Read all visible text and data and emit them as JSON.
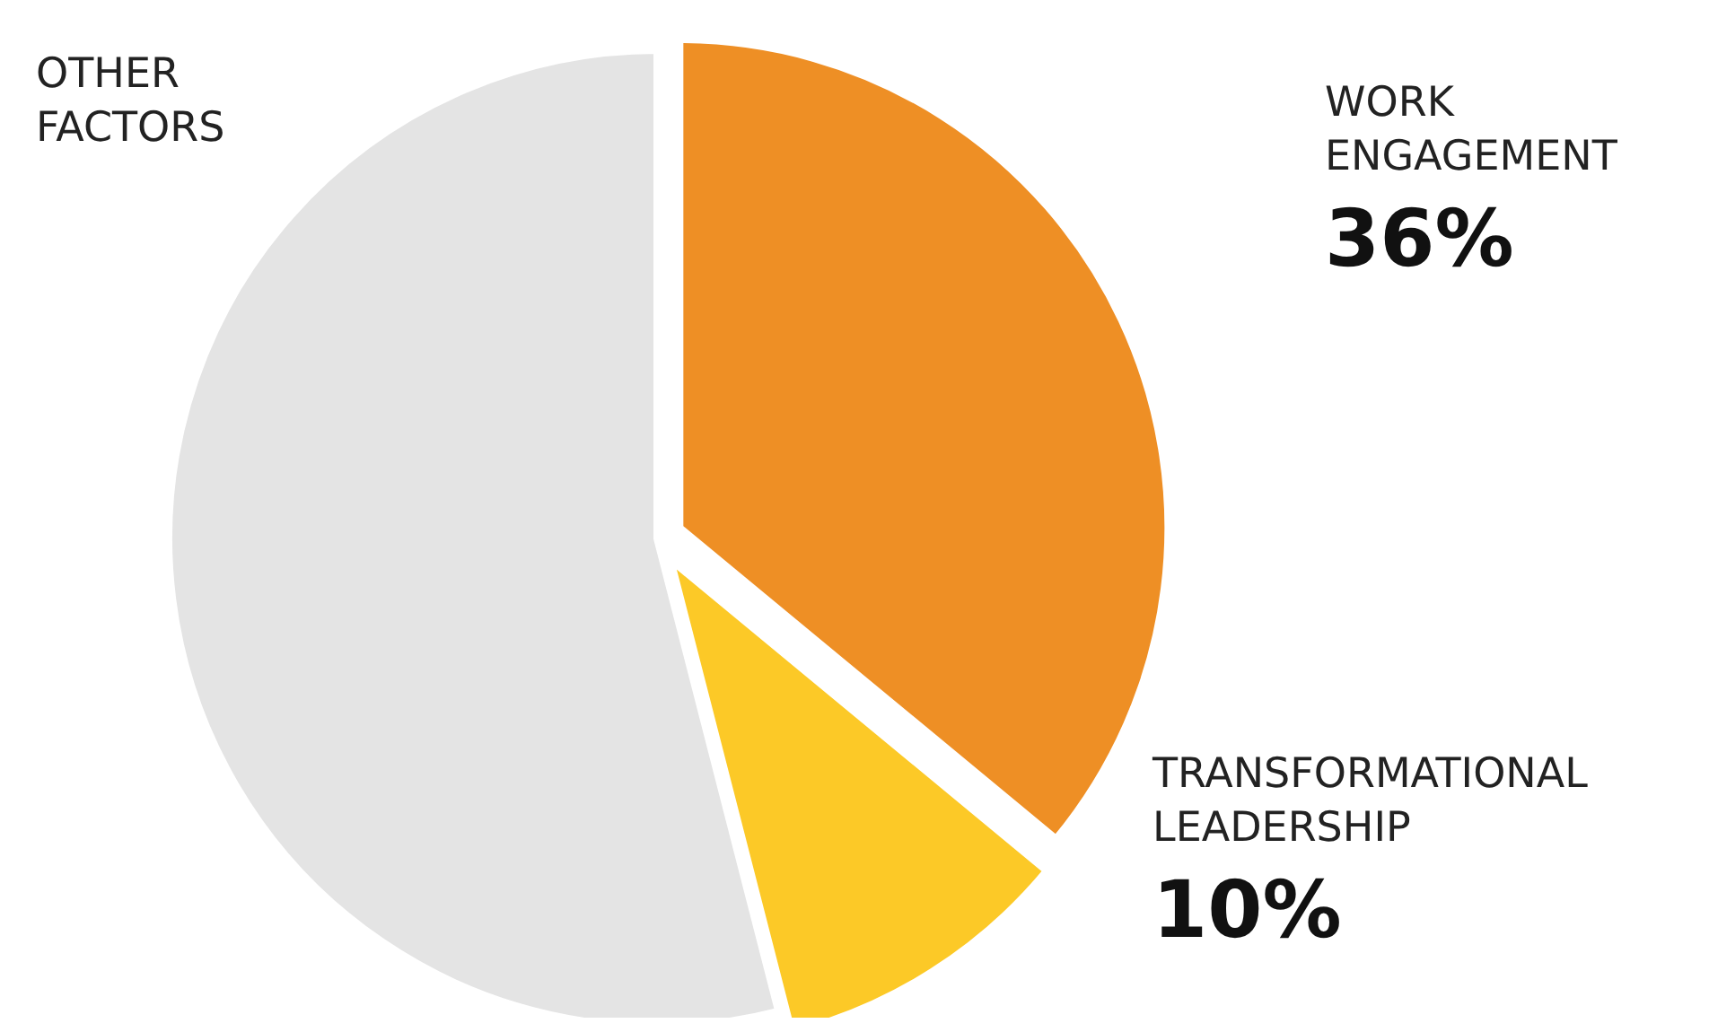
{
  "chart_data": {
    "type": "pie",
    "categories": [
      "WORK\nENGAGEMENT",
      "TRANSFORMATIONAL\nLEADERSHIP",
      "OTHER\nFACTORS"
    ],
    "values": [
      36,
      10,
      54
    ],
    "colors": [
      "#ee8f25",
      "#fcc927",
      "#e4e4e4"
    ],
    "value_labels": [
      "36%",
      "10%",
      null
    ],
    "legend": false
  }
}
